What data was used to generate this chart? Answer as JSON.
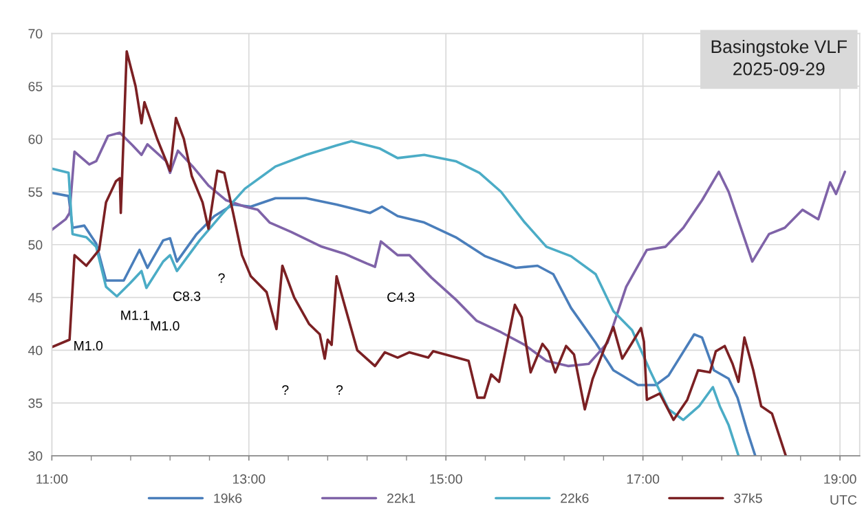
{
  "chart_data": {
    "type": "line",
    "title": "Basingstoke VLF\n2025-09-29",
    "xlabel": "UTC",
    "xlim": [
      11,
      19.2
    ],
    "ylim": [
      30,
      70
    ],
    "xticks": [
      {
        "value": 11,
        "label": "11:00"
      },
      {
        "value": 11.4,
        "label": null
      },
      {
        "value": 11.8,
        "label": null
      },
      {
        "value": 12.2,
        "label": null
      },
      {
        "value": 12.6,
        "label": null
      },
      {
        "value": 13,
        "label": "13:00"
      },
      {
        "value": 13.4,
        "label": null
      },
      {
        "value": 13.8,
        "label": null
      },
      {
        "value": 14.2,
        "label": null
      },
      {
        "value": 14.6,
        "label": null
      },
      {
        "value": 15,
        "label": "15:00"
      },
      {
        "value": 15.4,
        "label": null
      },
      {
        "value": 15.8,
        "label": null
      },
      {
        "value": 16.2,
        "label": null
      },
      {
        "value": 16.6,
        "label": null
      },
      {
        "value": 17,
        "label": "17:00"
      },
      {
        "value": 17.4,
        "label": null
      },
      {
        "value": 17.8,
        "label": null
      },
      {
        "value": 18.2,
        "label": null
      },
      {
        "value": 18.6,
        "label": null
      },
      {
        "value": 19,
        "label": "19:00"
      }
    ],
    "yticks": [
      30,
      35,
      40,
      45,
      50,
      55,
      60,
      65,
      70
    ],
    "grid": true,
    "legend": "bottom",
    "marker": "none",
    "line_style": "solid",
    "series": [
      {
        "name": "19k6",
        "color": "#4a7ebb",
        "x": [
          11.0,
          11.17,
          11.21,
          11.33,
          11.45,
          11.55,
          11.73,
          11.89,
          11.97,
          12.13,
          12.2,
          12.27,
          12.47,
          12.65,
          12.84,
          13.02,
          13.27,
          13.58,
          13.89,
          14.23,
          14.35,
          14.51,
          14.78,
          15.1,
          15.4,
          15.71,
          15.93,
          16.09,
          16.27,
          16.52,
          16.7,
          16.95,
          17.13,
          17.26,
          17.52,
          17.6,
          17.72,
          17.87,
          17.96,
          18.06,
          18.14
        ],
        "values": [
          54.9,
          54.6,
          51.6,
          51.8,
          50.1,
          46.6,
          46.6,
          49.5,
          47.8,
          50.4,
          50.6,
          48.4,
          51.0,
          52.7,
          53.8,
          53.6,
          54.4,
          54.4,
          53.8,
          53.0,
          53.6,
          52.7,
          52.1,
          50.7,
          48.9,
          47.8,
          48.0,
          47.2,
          44.0,
          40.7,
          38.1,
          36.7,
          36.7,
          37.6,
          41.5,
          41.2,
          38.1,
          37.3,
          35.5,
          32.3,
          30.0
        ]
      },
      {
        "name": "22k1",
        "color": "#7f63a8",
        "x": [
          11.0,
          11.14,
          11.18,
          11.23,
          11.38,
          11.45,
          11.57,
          11.69,
          11.82,
          11.91,
          11.97,
          12.16,
          12.2,
          12.28,
          12.43,
          12.59,
          12.77,
          12.96,
          13.09,
          13.21,
          13.43,
          13.74,
          13.98,
          14.2,
          14.28,
          14.34,
          14.51,
          14.63,
          14.85,
          15.1,
          15.31,
          15.56,
          15.8,
          16.02,
          16.24,
          16.45,
          16.64,
          16.83,
          17.04,
          17.23,
          17.41,
          17.6,
          17.77,
          17.87,
          18.11,
          18.28,
          18.44,
          18.62,
          18.78,
          18.9,
          18.96,
          19.05
        ],
        "values": [
          51.4,
          52.4,
          53.0,
          58.8,
          57.6,
          57.9,
          60.3,
          60.6,
          59.4,
          58.5,
          59.5,
          57.9,
          56.8,
          58.9,
          57.4,
          55.6,
          54.2,
          53.6,
          53.3,
          52.1,
          51.2,
          49.8,
          49.1,
          48.2,
          47.9,
          50.3,
          49.0,
          49.0,
          46.9,
          44.8,
          42.8,
          41.7,
          40.5,
          39.0,
          38.5,
          38.7,
          40.7,
          46.0,
          49.5,
          49.8,
          51.6,
          54.2,
          56.9,
          55.0,
          48.4,
          51.0,
          51.6,
          53.3,
          52.4,
          55.9,
          54.8,
          56.9
        ]
      },
      {
        "name": "22k6",
        "color": "#4bacc6",
        "x": [
          11.0,
          11.17,
          11.21,
          11.35,
          11.45,
          11.55,
          11.66,
          11.79,
          11.91,
          11.96,
          12.13,
          12.2,
          12.27,
          12.5,
          12.71,
          12.96,
          13.27,
          13.58,
          13.89,
          14.04,
          14.33,
          14.51,
          14.78,
          15.1,
          15.34,
          15.56,
          15.8,
          16.02,
          16.27,
          16.52,
          16.7,
          16.89,
          17.07,
          17.26,
          17.41,
          17.57,
          17.71,
          17.78,
          17.87,
          17.97
        ],
        "values": [
          57.2,
          56.8,
          51.0,
          50.7,
          49.8,
          46.0,
          45.1,
          46.3,
          47.5,
          45.9,
          48.4,
          49.0,
          47.5,
          50.4,
          52.7,
          55.3,
          57.4,
          58.5,
          59.4,
          59.8,
          59.1,
          58.2,
          58.5,
          57.9,
          56.8,
          55.0,
          52.1,
          49.8,
          48.9,
          47.2,
          43.7,
          41.9,
          38.1,
          34.4,
          33.4,
          34.7,
          36.5,
          34.7,
          32.9,
          30.0
        ]
      },
      {
        "name": "37k5",
        "color": "#7b2023",
        "x": [
          11.0,
          11.18,
          11.23,
          11.35,
          11.48,
          11.55,
          11.65,
          11.69,
          11.7,
          11.76,
          11.85,
          11.91,
          11.94,
          12.07,
          12.2,
          12.26,
          12.34,
          12.42,
          12.53,
          12.59,
          12.68,
          12.75,
          12.84,
          12.93,
          13.02,
          13.18,
          13.28,
          13.34,
          13.46,
          13.61,
          13.72,
          13.77,
          13.8,
          13.84,
          13.89,
          13.98,
          14.1,
          14.28,
          14.38,
          14.51,
          14.63,
          14.82,
          14.87,
          15.23,
          15.32,
          15.39,
          15.46,
          15.54,
          15.7,
          15.77,
          15.86,
          15.98,
          16.04,
          16.11,
          16.22,
          16.3,
          16.41,
          16.49,
          16.61,
          16.7,
          16.79,
          16.89,
          16.98,
          17.01,
          17.04,
          17.17,
          17.31,
          17.45,
          17.56,
          17.68,
          17.74,
          17.83,
          17.91,
          17.97,
          18.03,
          18.12,
          18.2,
          18.31,
          18.45
        ],
        "values": [
          40.3,
          41.0,
          49.0,
          48.0,
          49.5,
          54.0,
          56.0,
          56.3,
          53.0,
          68.3,
          65.0,
          61.5,
          63.5,
          60.0,
          57.0,
          62.0,
          60.0,
          56.5,
          54.0,
          51.5,
          57.0,
          56.8,
          53.0,
          49.0,
          47.0,
          45.5,
          42.0,
          48.0,
          45.0,
          42.5,
          41.5,
          39.2,
          41.0,
          40.5,
          47.0,
          44.0,
          40.0,
          38.5,
          39.8,
          39.3,
          39.8,
          39.3,
          39.9,
          39.0,
          35.5,
          35.5,
          37.7,
          37.0,
          44.3,
          43.1,
          37.9,
          40.6,
          39.9,
          37.9,
          40.4,
          39.6,
          34.4,
          37.3,
          40.2,
          42.2,
          39.2,
          40.7,
          42.1,
          40.8,
          35.3,
          35.9,
          33.4,
          35.3,
          38.1,
          37.9,
          39.9,
          40.4,
          38.7,
          37.0,
          41.2,
          38.1,
          34.7,
          34.0,
          30.0
        ]
      }
    ],
    "annotations": [
      "M1.0",
      "M1.1",
      "M1.0",
      "C8.3",
      "?",
      "?",
      "?",
      "C4.3"
    ]
  }
}
